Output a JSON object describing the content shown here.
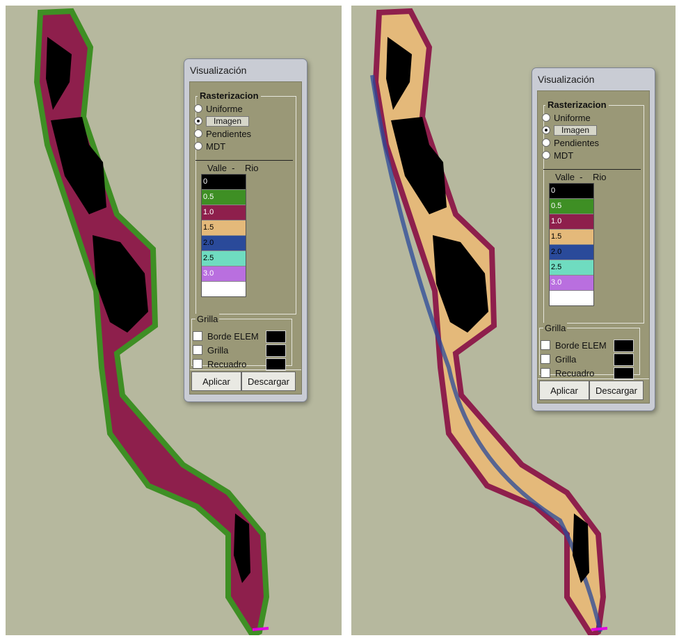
{
  "dialog": {
    "title": "Visualización",
    "raster_group": "Rasterizacion",
    "options": [
      "Uniforme",
      "Imagen",
      "Pendientes",
      "MDT"
    ],
    "selected_option": "Imagen",
    "legend_header": "Valle  -    Rio",
    "legend": [
      {
        "label": "0",
        "color": "#000000",
        "text": "#ffffff"
      },
      {
        "label": "0.5",
        "color": "#3e8f24",
        "text": "#ffffff"
      },
      {
        "label": "1.0",
        "color": "#8e1f4c",
        "text": "#ffffff"
      },
      {
        "label": "1.5",
        "color": "#e4b97a",
        "text": "#000000"
      },
      {
        "label": "2.0",
        "color": "#2a4a9a",
        "text": "#000000"
      },
      {
        "label": "2.5",
        "color": "#6fdcc0",
        "text": "#000000"
      },
      {
        "label": "3.0",
        "color": "#b96fdf",
        "text": "#ffffff"
      },
      {
        "label": "",
        "color": "#ffffff",
        "text": "#000000"
      }
    ],
    "grid_group": "Grilla",
    "grid_options": [
      "Borde ELEM",
      "Grilla",
      "Recuadro"
    ],
    "apply_label": "Aplicar",
    "unload_label": "Descargar"
  },
  "colors": {
    "background": "#b6b89e",
    "island": "#000000",
    "shallow": "#3e8f24",
    "mid": "#8e1f4c",
    "deep_sand": "#e4b97a",
    "channel": "#2a4a9a",
    "outlet": "#e000e0"
  }
}
